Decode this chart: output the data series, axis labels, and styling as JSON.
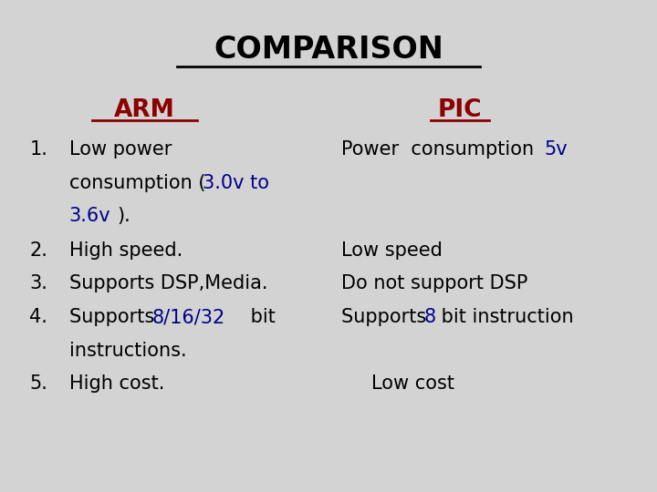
{
  "background_color": "#d3d3d3",
  "title": "COMPARISON",
  "title_color": "#000000",
  "title_fontsize": 24,
  "arm_label": "ARM",
  "arm_color": "#8b0000",
  "pic_label": "PIC",
  "pic_color": "#8b0000",
  "black_color": "#000000",
  "blue_color": "#00008b",
  "body_fontsize": 15,
  "label_fontsize": 19
}
